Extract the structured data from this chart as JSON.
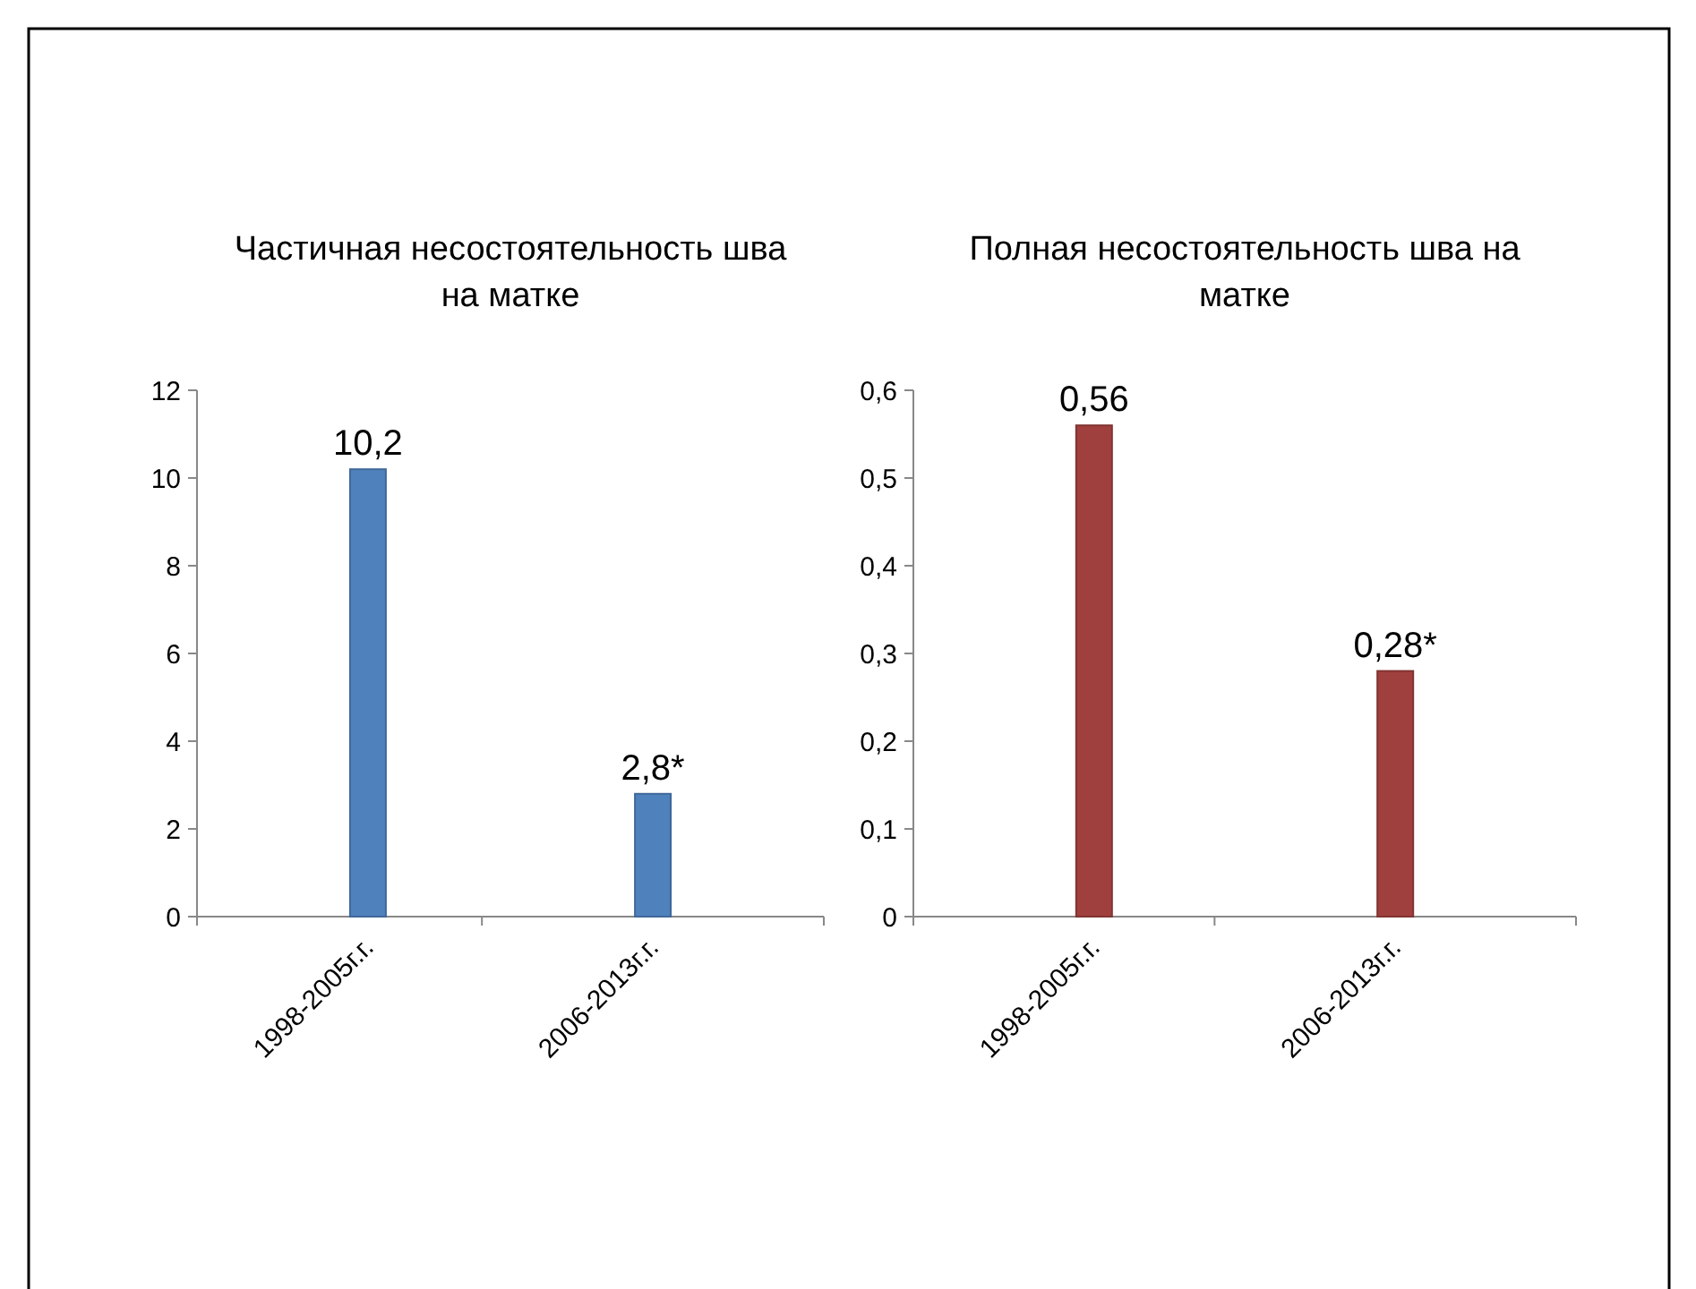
{
  "chart_data": [
    {
      "type": "bar",
      "title": "Частичная несостоятельность шва на матке",
      "categories": [
        "1998-2005г.г.",
        "2006-2013г.г."
      ],
      "values": [
        10.2,
        2.8
      ],
      "value_labels": [
        "10,2",
        "2,8*"
      ],
      "color": "#4f81bd",
      "ylim": [
        0,
        12
      ],
      "yticks": [
        0,
        2,
        4,
        6,
        8,
        10,
        12
      ],
      "grid": false
    },
    {
      "type": "bar",
      "title": "Полная несостоятельность шва на матке",
      "categories": [
        "1998-2005г.г.",
        "2006-2013г.г."
      ],
      "values": [
        0.56,
        0.28
      ],
      "value_labels": [
        "0,56",
        "0,28*"
      ],
      "color": "#a0403e",
      "ylim": [
        0,
        0.6
      ],
      "yticks": [
        0,
        {
          "value": 0.1,
          "label": "0,1"
        },
        {
          "value": 0.2,
          "label": "0,2"
        },
        {
          "value": 0.3,
          "label": "0,3"
        },
        {
          "value": 0.4,
          "label": "0,4"
        },
        {
          "value": 0.5,
          "label": "0,5"
        },
        {
          "value": 0.6,
          "label": "0,6"
        }
      ],
      "grid": false
    }
  ]
}
